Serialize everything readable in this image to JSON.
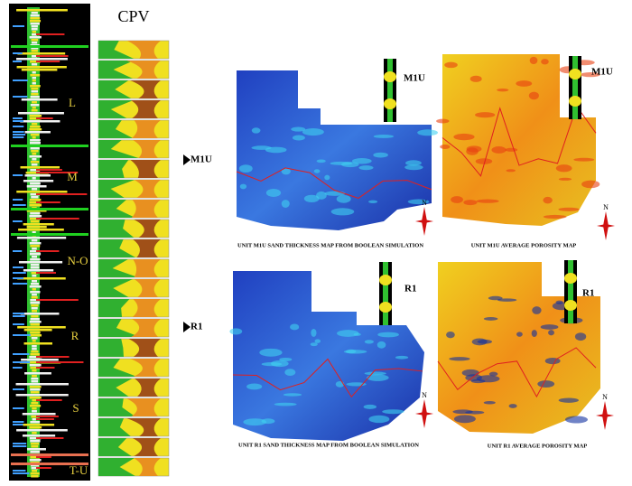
{
  "log_panel": {
    "zones": [
      "L",
      "M",
      "N-O",
      "R",
      "S",
      "T-U"
    ]
  },
  "cpv_panel": {
    "title": "CPV",
    "markers": [
      "M1U",
      "R1"
    ]
  },
  "maps": [
    {
      "label": "M1U",
      "north": "N",
      "caption": "UNIT M1U SAND THICKNESS MAP FROM BOOLEAN SIMULATION"
    },
    {
      "label": "M1U",
      "north": "N",
      "caption": "UNIT M1U AVERAGE POROSITY MAP"
    },
    {
      "label": "R1",
      "north": "N",
      "caption": "UNIT R1 SAND THICKNESS MAP FROM BOOLEAN SIMULATION"
    },
    {
      "label": "R1",
      "north": "N",
      "caption": "UNIT R1 AVERAGE POROSITY MAP"
    }
  ]
}
